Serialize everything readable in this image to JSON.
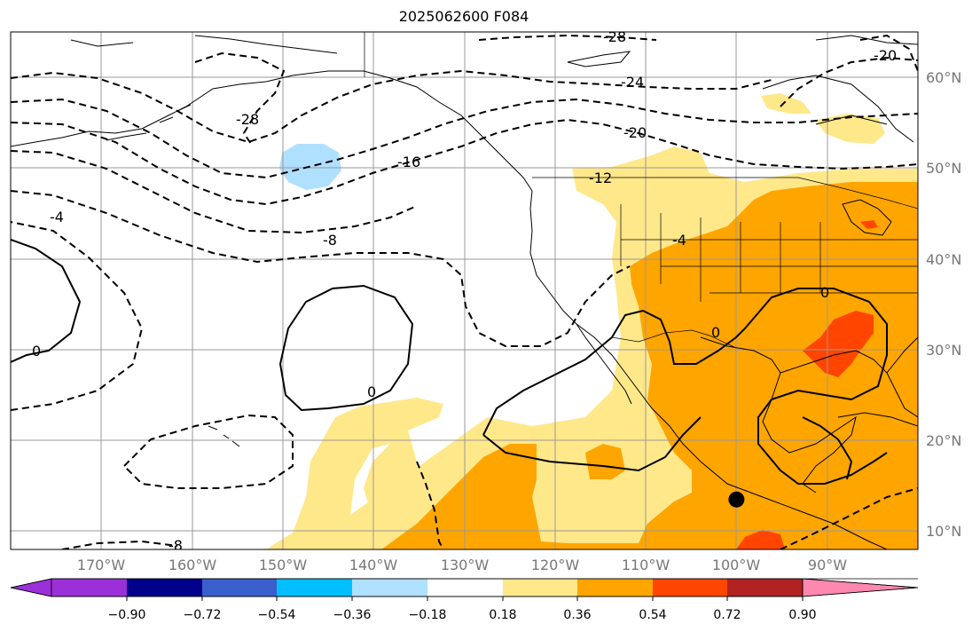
{
  "title": "2025062600 F084",
  "map": {
    "lon_range": [
      -180,
      -80
    ],
    "lat_range": [
      8,
      65
    ],
    "lat_labels": [
      "60°N",
      "50°N",
      "40°N",
      "30°N",
      "20°N",
      "10°N"
    ],
    "lon_labels": [
      "170°W",
      "160°W",
      "150°W",
      "140°W",
      "130°W",
      "120°W",
      "110°W",
      "100°W",
      "90°W"
    ],
    "contour_labels": [
      "-28",
      "-24",
      "-20",
      "-16",
      "-12",
      "-8",
      "-4",
      "0",
      "-28",
      "-20",
      "-4",
      "-8",
      "0",
      "0",
      "0"
    ],
    "marker": {
      "lon": -100,
      "lat": 13.5
    }
  },
  "colorbar": {
    "ticks": [
      "−0.90",
      "−0.72",
      "−0.54",
      "−0.36",
      "−0.18",
      "0.18",
      "0.36",
      "0.54",
      "0.72",
      "0.90"
    ],
    "colors": [
      "#9b30d9",
      "#00008b",
      "#3a5fcd",
      "#00bfff",
      "#b0e0ff",
      "#ffffff",
      "#ffe88a",
      "#ffa500",
      "#ff4500",
      "#b22222",
      "#ff88b0"
    ]
  },
  "colors": {
    "gridline": "#999999",
    "coast": "#000000",
    "fill_pos1": "#ffe88a",
    "fill_pos2": "#ffa500",
    "fill_pos3": "#ff4500",
    "fill_neg1": "#b0e0ff"
  }
}
